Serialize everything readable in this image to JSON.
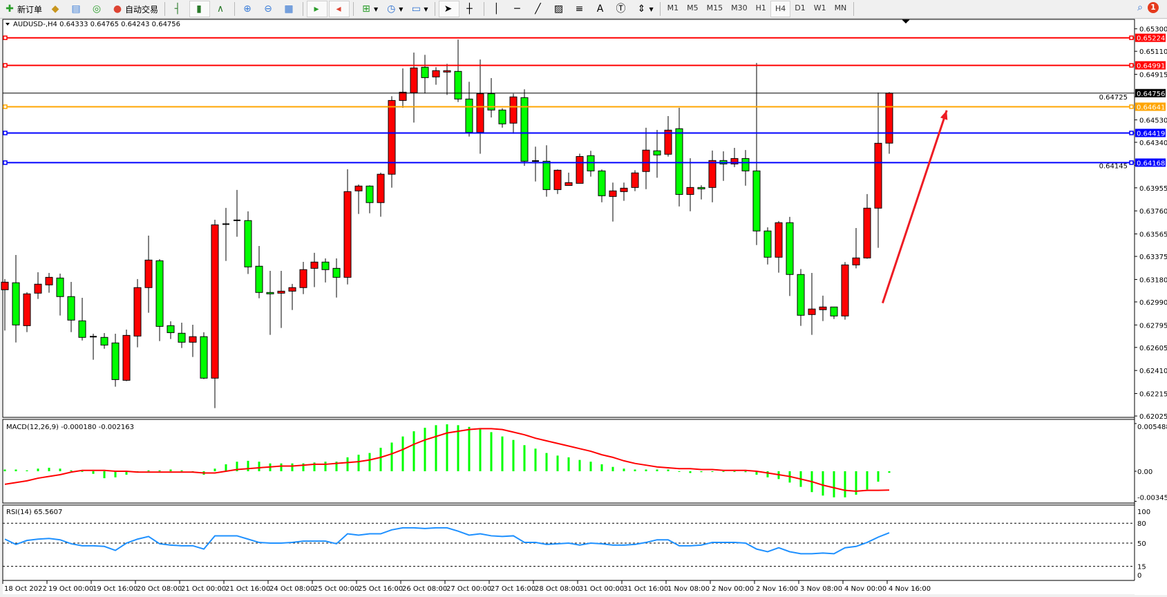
{
  "toolbar": {
    "new_order": "新订单",
    "auto_trading": "自动交易",
    "timeframes": [
      "M1",
      "M5",
      "M15",
      "M30",
      "H1",
      "H4",
      "D1",
      "W1",
      "MN"
    ],
    "active_timeframe": "H4",
    "notification_count": "1"
  },
  "chart_header": "AUDUSD-,H4  0.64333 0.64765 0.64243 0.64756",
  "macd_header": "MACD(12,26,9) -0.000180 -0.002163",
  "rsi_header": "RSI(14) 65.5607",
  "colors": {
    "up": "#ff0000",
    "down": "#00ff00",
    "macd_hist": "#00ff00",
    "macd_signal": "#ff0000",
    "rsi": "#1e90ff",
    "arrow": "#ee1c24"
  },
  "chart_data": [
    {
      "type": "candlestick",
      "symbol": "AUDUSD-",
      "timeframe": "H4",
      "ylim": [
        0.62025,
        0.653
      ],
      "y_ticks": [
        "0.65300",
        "0.65110",
        "0.64915",
        "0.64725",
        "0.64530",
        "0.64340",
        "0.64145",
        "0.63955",
        "0.63760",
        "0.63565",
        "0.63375",
        "0.63180",
        "0.62990",
        "0.62795",
        "0.62605",
        "0.62410",
        "0.62215",
        "0.62025"
      ],
      "x_ticks": [
        {
          "bar": 0,
          "label": "18 Oct 2022"
        },
        {
          "bar": 4,
          "label": "19 Oct 00:00"
        },
        {
          "bar": 8,
          "label": "19 Oct 16:00"
        },
        {
          "bar": 12,
          "label": "20 Oct 08:00"
        },
        {
          "bar": 16,
          "label": "21 Oct 00:00"
        },
        {
          "bar": 20,
          "label": "21 Oct 16:00"
        },
        {
          "bar": 24,
          "label": "24 Oct 08:00"
        },
        {
          "bar": 28,
          "label": "25 Oct 00:00"
        },
        {
          "bar": 32,
          "label": "25 Oct 16:00"
        },
        {
          "bar": 36,
          "label": "26 Oct 08:00"
        },
        {
          "bar": 40,
          "label": "27 Oct 00:00"
        },
        {
          "bar": 44,
          "label": "27 Oct 16:00"
        },
        {
          "bar": 48,
          "label": "28 Oct 08:00"
        },
        {
          "bar": 52,
          "label": "31 Oct 00:00"
        },
        {
          "bar": 56,
          "label": "31 Oct 16:00"
        },
        {
          "bar": 60,
          "label": "1 Nov 08:00"
        },
        {
          "bar": 64,
          "label": "2 Nov 00:00"
        },
        {
          "bar": 68,
          "label": "2 Nov 16:00"
        },
        {
          "bar": 72,
          "label": "3 Nov 08:00"
        },
        {
          "bar": 76,
          "label": "4 Nov 00:00"
        },
        {
          "bar": 80,
          "label": "4 Nov 16:00"
        }
      ],
      "ohlc": [
        [
          0.63093,
          0.63183,
          0.62748,
          0.63157
        ],
        [
          0.63152,
          0.63387,
          0.62647,
          0.62795
        ],
        [
          0.62789,
          0.63072,
          0.62735,
          0.63058
        ],
        [
          0.63064,
          0.63241,
          0.63015,
          0.6314
        ],
        [
          0.63134,
          0.63235,
          0.63068,
          0.63198
        ],
        [
          0.63192,
          0.63229,
          0.62875,
          0.63035
        ],
        [
          0.63035,
          0.63159,
          0.62735,
          0.62836
        ],
        [
          0.6283,
          0.63025,
          0.62664,
          0.6269
        ],
        [
          0.62694,
          0.62721,
          0.62501,
          0.62696
        ],
        [
          0.6269,
          0.62727,
          0.62594,
          0.62625
        ],
        [
          0.62643,
          0.62721,
          0.62273,
          0.62333
        ],
        [
          0.62327,
          0.62756,
          0.6232,
          0.62707
        ],
        [
          0.62701,
          0.63183,
          0.62606,
          0.63111
        ],
        [
          0.63111,
          0.63551,
          0.62898,
          0.63344
        ],
        [
          0.63338,
          0.63352,
          0.62659,
          0.62783
        ],
        [
          0.62789,
          0.62826,
          0.62676,
          0.6273
        ],
        [
          0.62725,
          0.62814,
          0.626,
          0.62649
        ],
        [
          0.62649,
          0.62797,
          0.62524,
          0.62696
        ],
        [
          0.62696,
          0.62733,
          0.62337,
          0.62345
        ],
        [
          0.62345,
          0.63685,
          0.62092,
          0.63642
        ],
        [
          0.63646,
          0.63785,
          0.63337,
          0.63648
        ],
        [
          0.63678,
          0.63937,
          0.63541,
          0.6368
        ],
        [
          0.63678,
          0.63756,
          0.63226,
          0.63286
        ],
        [
          0.63292,
          0.63463,
          0.63021,
          0.6307
        ],
        [
          0.6307,
          0.63253,
          0.62711,
          0.63058
        ],
        [
          0.63064,
          0.63253,
          0.6277,
          0.63081
        ],
        [
          0.63081,
          0.63142,
          0.62922,
          0.63111
        ],
        [
          0.63111,
          0.63329,
          0.63056,
          0.63263
        ],
        [
          0.63274,
          0.63405,
          0.63115,
          0.63327
        ],
        [
          0.63327,
          0.63358,
          0.63155,
          0.63263
        ],
        [
          0.63274,
          0.63358,
          0.63027,
          0.63198
        ],
        [
          0.63198,
          0.64112,
          0.63138,
          0.63923
        ],
        [
          0.63929,
          0.63983,
          0.63734,
          0.6397
        ],
        [
          0.6397,
          0.63976,
          0.6374,
          0.6383
        ],
        [
          0.6383,
          0.64083,
          0.63711,
          0.6407
        ],
        [
          0.6407,
          0.6473,
          0.63956,
          0.64694
        ],
        [
          0.64694,
          0.64965,
          0.64632,
          0.64764
        ],
        [
          0.64759,
          0.65099,
          0.64507,
          0.64969
        ],
        [
          0.64975,
          0.6508,
          0.64753,
          0.64887
        ],
        [
          0.64893,
          0.64975,
          0.64827,
          0.64946
        ],
        [
          0.64934,
          0.65004,
          0.64741,
          0.64946
        ],
        [
          0.6494,
          0.65209,
          0.64681,
          0.64706
        ],
        [
          0.64706,
          0.64852,
          0.64389,
          0.64424
        ],
        [
          0.64424,
          0.6504,
          0.64243,
          0.64751
        ],
        [
          0.64751,
          0.64883,
          0.6455,
          0.64613
        ],
        [
          0.64613,
          0.64628,
          0.64464,
          0.64496
        ],
        [
          0.64502,
          0.64751,
          0.64412,
          0.64724
        ],
        [
          0.64718,
          0.64788,
          0.64141,
          0.6418
        ],
        [
          0.6418,
          0.64303,
          0.64009,
          0.64182
        ],
        [
          0.6418,
          0.64315,
          0.6388,
          0.6394
        ],
        [
          0.6394,
          0.6411,
          0.63903,
          0.64104
        ],
        [
          0.63975,
          0.64083,
          0.63975,
          0.63999
        ],
        [
          0.63993,
          0.64244,
          0.63993,
          0.6422
        ],
        [
          0.64227,
          0.64268,
          0.6405,
          0.64098
        ],
        [
          0.64098,
          0.6411,
          0.63833,
          0.63888
        ],
        [
          0.63882,
          0.63999,
          0.6367,
          0.63929
        ],
        [
          0.63923,
          0.63999,
          0.63845,
          0.63952
        ],
        [
          0.63958,
          0.64104,
          0.63927,
          0.64081
        ],
        [
          0.64093,
          0.64463,
          0.63944,
          0.64274
        ],
        [
          0.64268,
          0.64445,
          0.6404,
          0.64233
        ],
        [
          0.64239,
          0.64562,
          0.64219,
          0.64443
        ],
        [
          0.64455,
          0.64632,
          0.63798,
          0.63899
        ],
        [
          0.63899,
          0.64205,
          0.63757,
          0.63958
        ],
        [
          0.63958,
          0.63977,
          0.63857,
          0.63946
        ],
        [
          0.63958,
          0.6427,
          0.63833,
          0.64186
        ],
        [
          0.64186,
          0.64264,
          0.64014,
          0.64157
        ],
        [
          0.64157,
          0.64293,
          0.64131,
          0.64203
        ],
        [
          0.64203,
          0.64275,
          0.63973,
          0.64098
        ],
        [
          0.64098,
          0.65011,
          0.63471,
          0.6359
        ],
        [
          0.6359,
          0.63621,
          0.63307,
          0.63368
        ],
        [
          0.63368,
          0.63674,
          0.63237,
          0.6366
        ],
        [
          0.6366,
          0.63709,
          0.6304,
          0.63222
        ],
        [
          0.63222,
          0.63268,
          0.62787,
          0.62877
        ],
        [
          0.62883,
          0.63235,
          0.62711,
          0.6293
        ],
        [
          0.62924,
          0.63043,
          0.62828,
          0.62947
        ],
        [
          0.62947,
          0.62947,
          0.62846,
          0.62871
        ],
        [
          0.62871,
          0.63327,
          0.6284,
          0.63303
        ],
        [
          0.63303,
          0.63615,
          0.63274,
          0.63362
        ],
        [
          0.63362,
          0.63902,
          0.63356,
          0.63783
        ],
        [
          0.63783,
          0.64761,
          0.63448,
          0.64332
        ],
        [
          0.64333,
          0.64765,
          0.64243,
          0.64756
        ]
      ],
      "horizontal_lines": [
        {
          "price": "0.65224",
          "color": "#ff0000"
        },
        {
          "price": "0.64991",
          "color": "#ff0000"
        },
        {
          "price": "0.64641",
          "color": "#ffa500"
        },
        {
          "price": "0.64419",
          "color": "#0000ff"
        },
        {
          "price": "0.64168",
          "color": "#0000ff"
        }
      ],
      "current_price": "0.64756",
      "arrow": {
        "from": {
          "bar": 79.4,
          "price": 0.6298
        },
        "to": {
          "bar": 85.2,
          "price": 0.6461
        }
      }
    },
    {
      "type": "bar+line",
      "name": "MACD(12,26,9)",
      "ylim": [
        -0.003457,
        0.005488
      ],
      "y_ticks": [
        "0.005488",
        "0.00",
        "-0.003457"
      ],
      "histogram": [
        0.0002,
        0.0002,
        0.0001,
        0.0003,
        0.0004,
        0.0003,
        0.0001,
        0.0,
        -0.0003,
        -0.0008,
        -0.0007,
        -0.0004,
        -0.0001,
        0.0001,
        0.0001,
        0.0002,
        0.0001,
        -0.0001,
        -0.0004,
        0.0003,
        0.0008,
        0.0011,
        0.0012,
        0.0011,
        0.0009,
        0.0009,
        0.0009,
        0.0009,
        0.001,
        0.0011,
        0.0011,
        0.0016,
        0.0019,
        0.0021,
        0.0027,
        0.0033,
        0.004,
        0.0046,
        0.005,
        0.0053,
        0.0054,
        0.0053,
        0.0051,
        0.0049,
        0.0045,
        0.004,
        0.0036,
        0.003,
        0.0026,
        0.0021,
        0.0018,
        0.0016,
        0.0013,
        0.0011,
        0.0008,
        0.0005,
        0.0003,
        0.0002,
        0.0002,
        0.0002,
        0.0002,
        0.0,
        -0.0002,
        -0.0001,
        0.0,
        0.0,
        0.0,
        -0.0001,
        -0.0004,
        -0.0007,
        -0.0009,
        -0.0013,
        -0.0018,
        -0.0024,
        -0.0028,
        -0.003,
        -0.003,
        -0.0027,
        -0.0021,
        -0.0012,
        -0.00018
      ],
      "signal": [
        -0.0015,
        -0.0013,
        -0.0011,
        -0.0008,
        -0.0006,
        -0.0004,
        -0.0001,
        0.0001,
        0.0001,
        0.0001,
        0.0,
        0.0,
        -0.0001,
        -0.0001,
        -0.0001,
        -0.0001,
        -0.0001,
        -0.0001,
        -0.0002,
        -0.0002,
        0.0,
        0.0002,
        0.0003,
        0.0004,
        0.0005,
        0.0006,
        0.0006,
        0.0007,
        0.0008,
        0.0008,
        0.0009,
        0.001,
        0.0011,
        0.0013,
        0.0016,
        0.002,
        0.0025,
        0.0031,
        0.0036,
        0.004,
        0.0044,
        0.0046,
        0.0048,
        0.0049,
        0.0049,
        0.0048,
        0.0045,
        0.0042,
        0.0038,
        0.0035,
        0.0032,
        0.0029,
        0.0026,
        0.0023,
        0.0019,
        0.0016,
        0.0012,
        0.0009,
        0.0007,
        0.0005,
        0.0004,
        0.0003,
        0.0003,
        0.0002,
        0.0002,
        0.0001,
        0.0001,
        0.0001,
        0.0,
        -0.0002,
        -0.0004,
        -0.0006,
        -0.0009,
        -0.0012,
        -0.0016,
        -0.0019,
        -0.0022,
        -0.0023,
        -0.0022,
        -0.0022,
        -0.002163
      ]
    },
    {
      "type": "line",
      "name": "RSI(14)",
      "ylim": [
        0,
        100
      ],
      "y_ticks": [
        "100",
        "80",
        "50",
        "15",
        "0"
      ],
      "levels": [
        80,
        50,
        15
      ],
      "values": [
        56,
        48,
        54,
        56,
        57,
        55,
        49,
        46,
        46,
        45,
        39,
        50,
        56,
        60,
        49,
        47,
        46,
        46,
        41,
        61,
        61,
        61,
        56,
        51,
        50,
        50,
        51,
        53,
        53,
        53,
        49,
        64,
        62,
        64,
        64,
        70,
        73,
        73,
        72,
        73,
        73,
        68,
        62,
        64,
        61,
        60,
        61,
        51,
        51,
        48,
        49,
        50,
        47,
        50,
        49,
        47,
        47,
        48,
        51,
        55,
        55,
        46,
        46,
        47,
        51,
        51,
        51,
        50,
        41,
        37,
        43,
        37,
        34,
        34,
        35,
        34,
        43,
        45,
        51,
        59,
        65.56
      ]
    }
  ]
}
